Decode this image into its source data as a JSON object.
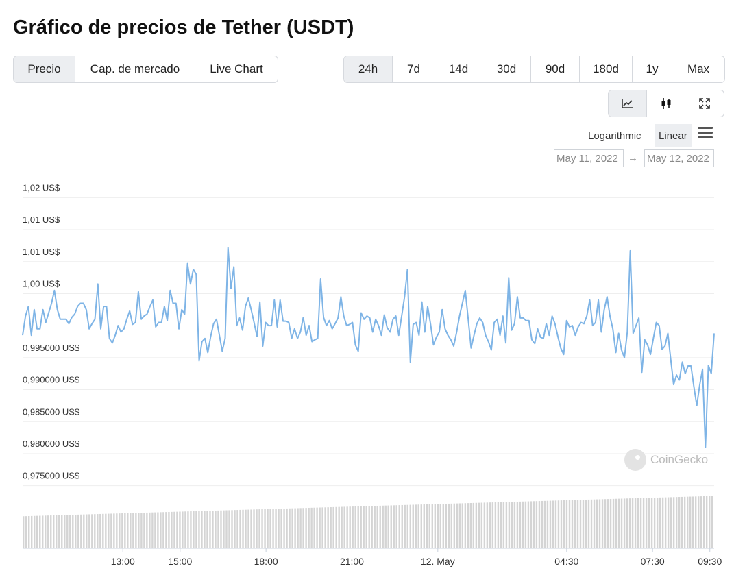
{
  "title": "Gráfico de precios de Tether (USDT)",
  "tabs": [
    {
      "label": "Precio",
      "active": true
    },
    {
      "label": "Cap. de mercado",
      "active": false
    },
    {
      "label": "Live Chart",
      "active": false
    }
  ],
  "ranges": [
    {
      "label": "24h",
      "active": true
    },
    {
      "label": "7d",
      "active": false
    },
    {
      "label": "14d",
      "active": false
    },
    {
      "label": "30d",
      "active": false
    },
    {
      "label": "90d",
      "active": false
    },
    {
      "label": "180d",
      "active": false
    },
    {
      "label": "1y",
      "active": false
    },
    {
      "label": "Max",
      "active": false
    }
  ],
  "view_buttons": [
    {
      "icon": "line-chart-icon",
      "active": true
    },
    {
      "icon": "candlestick-icon",
      "active": false
    },
    {
      "icon": "expand-icon",
      "active": false
    }
  ],
  "scale": {
    "log_label": "Logarithmic",
    "linear_label": "Linear",
    "active": "Linear"
  },
  "date_range": {
    "from": "May 11, 2022",
    "to": "May 12, 2022",
    "arrow": "→"
  },
  "watermark": "CoinGecko",
  "chart_data": {
    "type": "line",
    "line_color": "#7eb4e6",
    "volume_color": "#d4d4d4",
    "ylim": [
      0.9725,
      1.0225
    ],
    "y_ticks": [
      {
        "value": 1.02,
        "label": "1,02 US$"
      },
      {
        "value": 1.015,
        "label": "1,01 US$"
      },
      {
        "value": 1.01,
        "label": "1,01 US$"
      },
      {
        "value": 1.005,
        "label": "1,00 US$"
      },
      {
        "value": 0.995,
        "label": "0,995000 US$"
      },
      {
        "value": 0.99,
        "label": "0,990000 US$"
      },
      {
        "value": 0.985,
        "label": "0,985000 US$"
      },
      {
        "value": 0.98,
        "label": "0,980000 US$"
      },
      {
        "value": 0.975,
        "label": "0,975000 US$"
      }
    ],
    "x_ticks": [
      {
        "hours": 3.5,
        "label": "13:00"
      },
      {
        "hours": 5.5,
        "label": "15:00"
      },
      {
        "hours": 8.5,
        "label": "18:00"
      },
      {
        "hours": 11.5,
        "label": "21:00"
      },
      {
        "hours": 14.5,
        "label": "12. May"
      },
      {
        "hours": 19.0,
        "label": "04:30"
      },
      {
        "hours": 22.0,
        "label": "07:30"
      },
      {
        "hours": 24.0,
        "label": "09:30"
      }
    ],
    "series": [
      {
        "values": [
          0.9985,
          1.0015,
          1.003,
          0.9985,
          1.0025,
          0.9995,
          0.9995,
          1.0025,
          1.0005,
          1.002,
          1.0035,
          1.0055,
          1.0025,
          1.001,
          1.001,
          1.001,
          1.0003,
          1.0013,
          1.0018,
          1.003,
          1.0035,
          1.0035,
          1.0025,
          0.9995,
          1.0003,
          1.001,
          1.0065,
          0.9995,
          1.003,
          1.003,
          0.998,
          0.9973,
          0.9985,
          1.0,
          0.999,
          0.9995,
          1.001,
          1.0023,
          1.0002,
          1.0005,
          1.0053,
          1.001,
          1.0015,
          1.0018,
          1.003,
          1.004,
          0.9998,
          1.0005,
          1.0005,
          1.003,
          1.0008,
          1.0055,
          1.0035,
          1.0035,
          0.9995,
          1.0025,
          1.0018,
          1.0097,
          1.0065,
          1.0088,
          1.008,
          0.9945,
          0.9975,
          0.998,
          0.9958,
          0.9983,
          1.0003,
          1.001,
          0.9985,
          0.996,
          0.998,
          1.0122,
          1.0058,
          1.0092,
          1.0,
          1.0012,
          0.9993,
          1.003,
          1.0043,
          1.0025,
          1.0005,
          0.9983,
          1.0037,
          0.9968,
          1.0005,
          1.0,
          1.0,
          1.004,
          0.9998,
          1.004,
          1.0007,
          1.0007,
          1.0005,
          0.998,
          0.9995,
          0.998,
          0.999,
          1.0013,
          0.9985,
          1.0,
          0.9975,
          0.9978,
          0.998,
          1.0073,
          1.0013,
          1.0,
          1.0008,
          0.9995,
          1.0003,
          1.0012,
          1.0045,
          1.0015,
          1.0,
          1.0002,
          1.0005,
          0.997,
          0.996,
          1.002,
          1.001,
          1.0015,
          1.0012,
          0.999,
          1.001,
          1.0,
          0.9985,
          1.0017,
          0.9997,
          0.999,
          1.001,
          1.0015,
          0.9985,
          1.0015,
          1.0045,
          1.0088,
          0.9943,
          1.0002,
          1.0005,
          0.9985,
          1.0037,
          0.999,
          1.003,
          1.0002,
          0.997,
          0.9982,
          0.999,
          1.0025,
          0.9995,
          0.9985,
          0.9978,
          0.9968,
          0.999,
          1.0015,
          1.0035,
          1.0055,
          1.001,
          0.9965,
          0.9985,
          1.0003,
          1.0012,
          1.0005,
          0.9985,
          0.9975,
          0.9962,
          1.0005,
          1.001,
          0.9985,
          1.0015,
          0.9973,
          1.0075,
          0.9993,
          1.0003,
          1.0045,
          1.0012,
          1.0012,
          1.0008,
          1.0008,
          0.9978,
          0.9972,
          0.9995,
          0.9982,
          0.998,
          1.0003,
          0.9985,
          1.0015,
          1.0003,
          0.9983,
          0.9965,
          0.9955,
          1.0008,
          0.9998,
          1.0,
          0.9985,
          0.9998,
          1.0005,
          1.0003,
          1.0015,
          1.004,
          1.0,
          1.0005,
          1.004,
          0.999,
          1.0025,
          1.0045,
          1.0015,
          0.9995,
          0.9958,
          0.9988,
          0.9962,
          0.995,
          0.999,
          1.0117,
          0.9988,
          1.0,
          1.0012,
          0.9927,
          0.9978,
          0.997,
          0.9955,
          0.998,
          1.0005,
          1.0,
          0.9963,
          0.9968,
          0.9988,
          0.9947,
          0.9908,
          0.9923,
          0.9915,
          0.9943,
          0.9925,
          0.9937,
          0.9937,
          0.9905,
          0.9875,
          0.9907,
          0.9932,
          0.981,
          0.9938,
          0.9925,
          0.9988
        ]
      }
    ],
    "volume": [
      1,
      1,
      1,
      1,
      1,
      1,
      1,
      1,
      1,
      1,
      1,
      1,
      1,
      1,
      1,
      1,
      1,
      1,
      1,
      1,
      1,
      1,
      1,
      1,
      1,
      1,
      1,
      1,
      1,
      1,
      1,
      1,
      1,
      1,
      1,
      1,
      1,
      1,
      1,
      1,
      1,
      1,
      1,
      1,
      1,
      1,
      1,
      1,
      1,
      1,
      1,
      1,
      1,
      1,
      1,
      1,
      1,
      1,
      1,
      1,
      1,
      1,
      1,
      1,
      1,
      1,
      1,
      1,
      1,
      1,
      1,
      1,
      1,
      1,
      1,
      1,
      1,
      1,
      1,
      1,
      1,
      1,
      1,
      1,
      1,
      1,
      1,
      1,
      1,
      1,
      1,
      1,
      1,
      1,
      1,
      1,
      1,
      1,
      1,
      1,
      1,
      1,
      1,
      1,
      1,
      1,
      1,
      1,
      1,
      1,
      1,
      1,
      1,
      1,
      1,
      1,
      1,
      1,
      1,
      1,
      1,
      1,
      1,
      1,
      1,
      1,
      1,
      1,
      1,
      1,
      1,
      1,
      1,
      1,
      1,
      1,
      1,
      1,
      1,
      1,
      1,
      1,
      1,
      1,
      1,
      1,
      1,
      1,
      1,
      1,
      1,
      1,
      1,
      1,
      1,
      1,
      1,
      1,
      1,
      1,
      1,
      1,
      1,
      1,
      1,
      1,
      1,
      1,
      1,
      1,
      1,
      1,
      1,
      1,
      1,
      1,
      1,
      1,
      1,
      1,
      1,
      1,
      1,
      1,
      1,
      1,
      1,
      1,
      1,
      1,
      1,
      1,
      1,
      1,
      1,
      1,
      1,
      1,
      1,
      1,
      1,
      1,
      1,
      1,
      1,
      1,
      1,
      1,
      1,
      1,
      1,
      1,
      1,
      1,
      1,
      1,
      1,
      1,
      1,
      1,
      1,
      1,
      1,
      1,
      1,
      1,
      1,
      1,
      1,
      1,
      1,
      1,
      1,
      1,
      1,
      1,
      1,
      1,
      1,
      1,
      1,
      1,
      1,
      1,
      1,
      1,
      1,
      1,
      1,
      1,
      1,
      1
    ]
  }
}
